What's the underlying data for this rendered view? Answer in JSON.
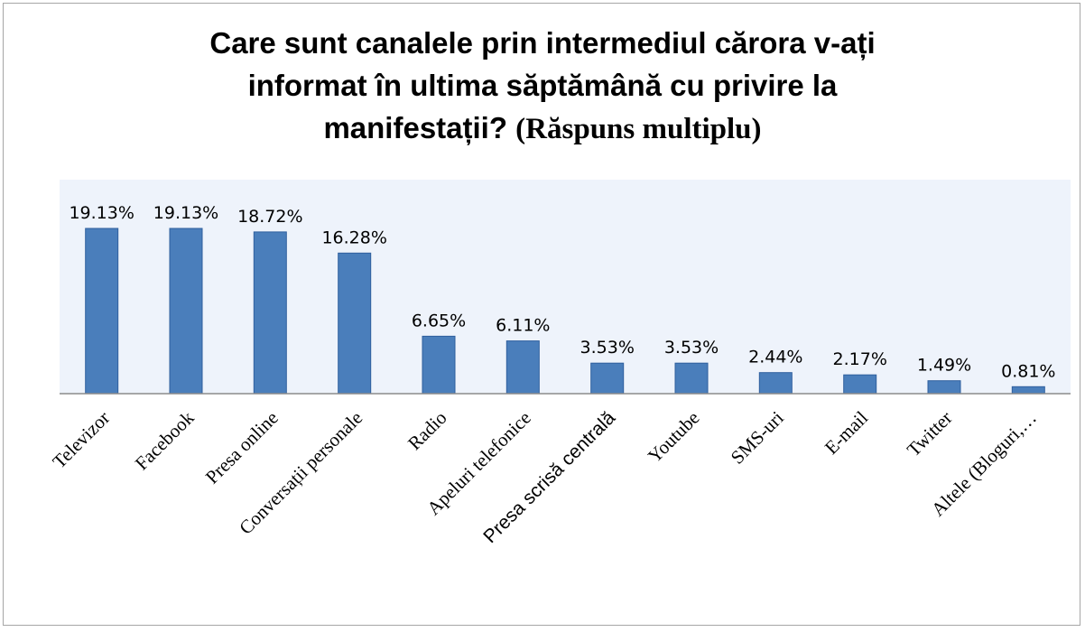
{
  "chart_data": {
    "type": "bar",
    "title_line1": "Care sunt canalele prin intermediul cărora v-ați",
    "title_line2": "informat în ultima săptămână cu privire la",
    "title_line3_main": "manifestații?",
    "title_line3_paren": "(Răspuns multiplu)",
    "categories": [
      "Televizor",
      "Facebook",
      "Presa online",
      "Conversații personale",
      "Radio",
      "Apeluri telefonice",
      "Presa scrisă centrală",
      "Youtube",
      "SMS-uri",
      "E-mail",
      "Twitter",
      "Altele (Bloguri,…"
    ],
    "values": [
      19.13,
      19.13,
      18.72,
      16.28,
      6.65,
      6.11,
      3.53,
      3.53,
      2.44,
      2.17,
      1.49,
      0.81
    ],
    "value_labels": [
      "19.13%",
      "19.13%",
      "18.72%",
      "16.28%",
      "6.65%",
      "6.11%",
      "3.53%",
      "3.53%",
      "2.44%",
      "2.17%",
      "1.49%",
      "0.81%"
    ],
    "xlabel": "",
    "ylabel": "",
    "ylim": [
      0,
      19.13
    ],
    "grid": false,
    "bar_color": "#4a7ebb",
    "plot_background": "#eef3fb"
  }
}
